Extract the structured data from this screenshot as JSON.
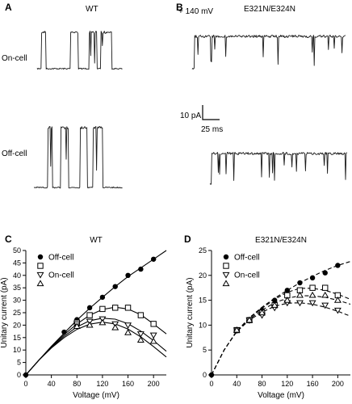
{
  "panels": {
    "A": {
      "letter": "A",
      "title": "WT",
      "row1": "On-cell",
      "row2": "Off-cell"
    },
    "B": {
      "letter": "B",
      "voltage": "+ 140 mV",
      "title": "E321N/E324N",
      "scale_current": "10 pA",
      "scale_time": "25 ms"
    }
  },
  "chart_data": [
    {
      "type": "scatter",
      "panel": "C",
      "title": "WT",
      "xlabel": "Voltage (mV)",
      "ylabel": "Unitary current (pA)",
      "xlim": [
        0,
        220
      ],
      "ylim": [
        0,
        50
      ],
      "xticks": [
        0,
        40,
        80,
        120,
        160,
        200
      ],
      "yticks": [
        0,
        5,
        10,
        15,
        20,
        25,
        30,
        35,
        40,
        45,
        50
      ],
      "legend_position": "top-left",
      "fit_style": "solid",
      "series": [
        {
          "name": "Off-cell",
          "marker": "circle-filled",
          "x": [
            0,
            60,
            80,
            100,
            120,
            140,
            160,
            180,
            200
          ],
          "y": [
            0,
            17.2,
            22.2,
            27.0,
            31.2,
            35.5,
            40.0,
            42.5,
            46.5
          ],
          "fit_x": [
            0,
            20,
            40,
            60,
            80,
            100,
            120,
            140,
            160,
            180,
            200,
            220
          ],
          "fit_y": [
            0,
            5.8,
            11.5,
            16.8,
            22.0,
            26.8,
            31.2,
            35.5,
            39.5,
            43.0,
            46.5,
            50.0
          ]
        },
        {
          "name": "",
          "marker": "square-open",
          "x": [
            80,
            100,
            120,
            140,
            160,
            180,
            200
          ],
          "y": [
            21.0,
            24.0,
            26.5,
            27.0,
            27.0,
            24.0,
            20.5
          ],
          "fit_x": [
            0,
            20,
            40,
            60,
            80,
            100,
            120,
            140,
            160,
            180,
            200,
            220
          ],
          "fit_y": [
            0,
            5.8,
            11.2,
            16.2,
            20.5,
            24.0,
            26.3,
            27.2,
            26.5,
            24.2,
            20.5,
            16.5
          ]
        },
        {
          "name": "On-cell",
          "marker": "triangle-down-open",
          "x": [
            80,
            100,
            120,
            140,
            160,
            180,
            200
          ],
          "y": [
            20.5,
            21.5,
            22.5,
            20.5,
            20.0,
            16.5,
            16.0
          ],
          "fit_x": [
            0,
            20,
            40,
            60,
            80,
            100,
            120,
            140,
            160,
            180,
            200,
            220
          ],
          "fit_y": [
            0,
            5.8,
            11.0,
            15.6,
            19.3,
            21.8,
            22.8,
            22.4,
            20.6,
            17.6,
            13.8,
            9.5
          ]
        },
        {
          "name": "",
          "marker": "triangle-up-open",
          "x": [
            80,
            100,
            120,
            140,
            160,
            180,
            200
          ],
          "y": [
            19.5,
            20.0,
            21.0,
            19.0,
            17.0,
            14.0,
            13.5
          ],
          "fit_x": [
            0,
            20,
            40,
            60,
            80,
            100,
            120,
            140,
            160,
            180,
            200,
            220
          ],
          "fit_y": [
            0,
            5.8,
            10.8,
            15.0,
            18.3,
            20.4,
            21.2,
            20.5,
            18.4,
            15.3,
            11.4,
            7.2
          ]
        }
      ]
    },
    {
      "type": "scatter",
      "panel": "D",
      "title": "E321N/E324N",
      "xlabel": "Voltage (mV)",
      "ylabel": "Unitary current (pA)",
      "xlim": [
        0,
        220
      ],
      "ylim": [
        0,
        25
      ],
      "xticks": [
        0,
        40,
        80,
        120,
        160,
        200
      ],
      "yticks": [
        0,
        5,
        10,
        15,
        20,
        25
      ],
      "legend_position": "top-left",
      "fit_style": "dashed",
      "series": [
        {
          "name": "Off-cell",
          "marker": "circle-filled",
          "x": [
            0,
            40,
            60,
            80,
            100,
            120,
            140,
            160,
            180,
            200
          ],
          "y": [
            0,
            9.0,
            11.0,
            13.0,
            15.0,
            17.0,
            18.5,
            19.5,
            20.5,
            22.0
          ],
          "fit_x": [
            0,
            20,
            40,
            60,
            80,
            100,
            120,
            140,
            160,
            180,
            200,
            220
          ],
          "fit_y": [
            0,
            5.0,
            8.8,
            11.5,
            13.6,
            15.4,
            17.0,
            18.5,
            19.8,
            21.0,
            22.0,
            22.8
          ]
        },
        {
          "name": "",
          "marker": "square-open",
          "x": [
            40,
            60,
            80,
            100,
            120,
            140,
            160,
            180,
            200
          ],
          "y": [
            9.0,
            11.0,
            12.5,
            14.0,
            16.0,
            17.0,
            17.5,
            17.5,
            16.0
          ],
          "fit_x": [
            0,
            20,
            40,
            60,
            80,
            100,
            120,
            140,
            160,
            180,
            200,
            220
          ],
          "fit_y": [
            0,
            5.0,
            8.8,
            11.4,
            13.4,
            15.2,
            16.6,
            17.4,
            17.4,
            17.0,
            16.2,
            15.2
          ]
        },
        {
          "name": "On-cell",
          "marker": "triangle-down-open",
          "x": [
            40,
            60,
            80,
            100,
            120,
            140,
            160,
            180,
            200
          ],
          "y": [
            9.0,
            11.0,
            12.0,
            13.5,
            14.5,
            14.5,
            14.5,
            14.0,
            13.0
          ],
          "fit_x": [
            0,
            20,
            40,
            60,
            80,
            100,
            120,
            140,
            160,
            180,
            200,
            220
          ],
          "fit_y": [
            0,
            5.0,
            8.7,
            11.0,
            12.6,
            13.8,
            14.4,
            14.5,
            14.2,
            13.6,
            12.8,
            11.8
          ]
        },
        {
          "name": "",
          "marker": "triangle-up-open",
          "x": [
            40,
            60,
            80,
            100,
            120,
            140,
            160,
            180,
            200
          ],
          "y": [
            9.0,
            11.0,
            12.5,
            14.0,
            15.0,
            16.0,
            16.0,
            16.0,
            15.0
          ],
          "fit_x": [
            0,
            20,
            40,
            60,
            80,
            100,
            120,
            140,
            160,
            180,
            200,
            220
          ],
          "fit_y": [
            0,
            5.0,
            8.8,
            11.2,
            13.0,
            14.5,
            15.4,
            15.9,
            15.9,
            15.6,
            15.0,
            14.2
          ]
        }
      ]
    }
  ]
}
